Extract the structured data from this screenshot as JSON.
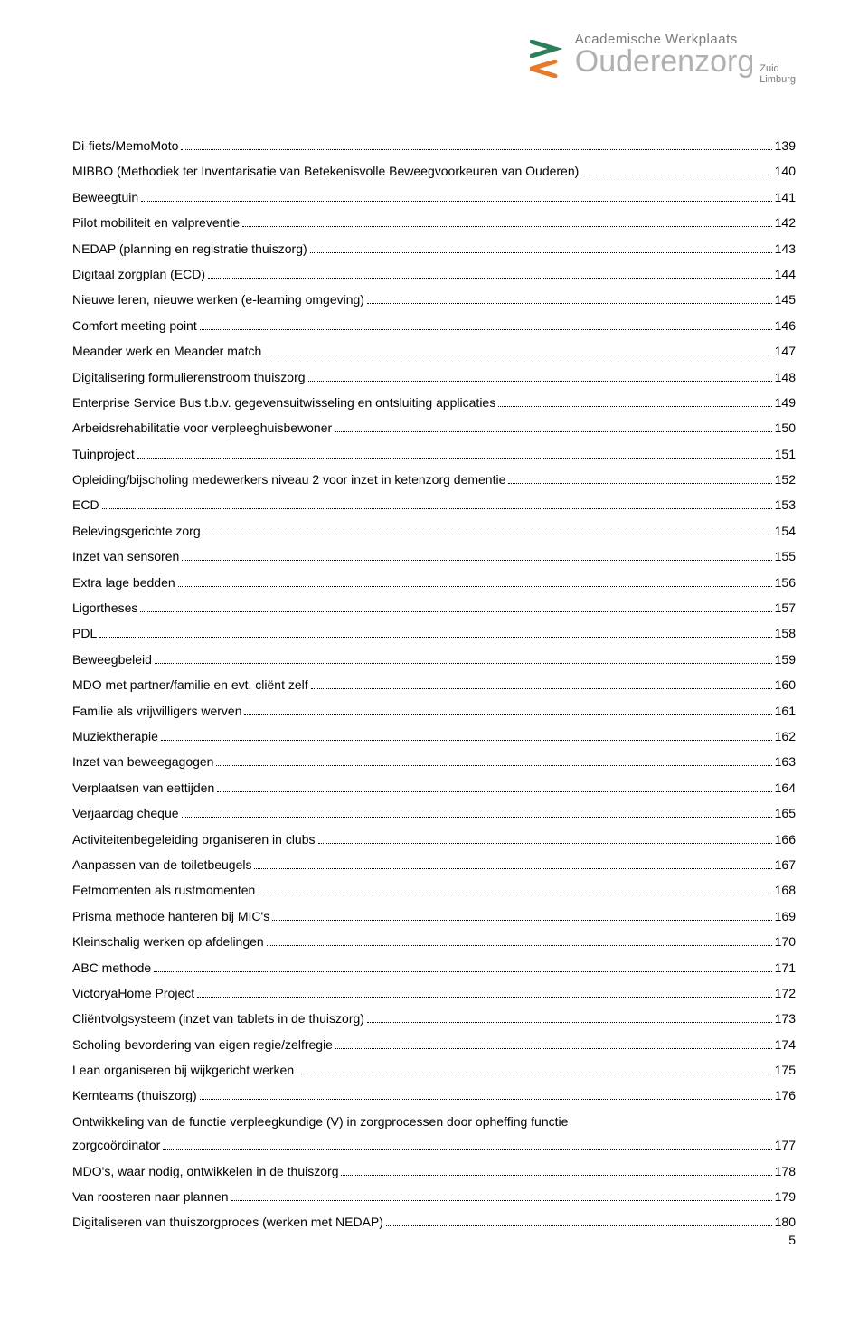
{
  "logo": {
    "line1": "Academische Werkplaats",
    "main": "Ouderenzorg",
    "sub1": "Zuid",
    "sub2": "Limburg",
    "chevron_color_top": "#2e7d5b",
    "chevron_color_bot": "#e67a2e"
  },
  "toc": [
    {
      "title": "Di-fiets/MemoMoto",
      "page": "139"
    },
    {
      "title": "MIBBO (Methodiek ter Inventarisatie van Betekenisvolle Beweegvoorkeuren van Ouderen)",
      "page": "140"
    },
    {
      "title": "Beweegtuin",
      "page": "141"
    },
    {
      "title": "Pilot mobiliteit en valpreventie",
      "page": "142"
    },
    {
      "title": "NEDAP (planning en registratie thuiszorg)",
      "page": "143"
    },
    {
      "title": "Digitaal zorgplan (ECD)",
      "page": "144"
    },
    {
      "title": "Nieuwe leren, nieuwe werken (e-learning omgeving)",
      "page": "145"
    },
    {
      "title": "Comfort meeting point",
      "page": "146"
    },
    {
      "title": "Meander werk en Meander match",
      "page": "147"
    },
    {
      "title": "Digitalisering formulierenstroom thuiszorg",
      "page": "148"
    },
    {
      "title": "Enterprise Service Bus t.b.v. gegevensuitwisseling en ontsluiting applicaties",
      "page": "149"
    },
    {
      "title": "Arbeidsrehabilitatie voor verpleeghuisbewoner",
      "page": "150"
    },
    {
      "title": "Tuinproject",
      "page": "151"
    },
    {
      "title": "Opleiding/bijscholing medewerkers niveau 2 voor inzet in ketenzorg dementie",
      "page": "152"
    },
    {
      "title": "ECD",
      "page": "153"
    },
    {
      "title": "Belevingsgerichte zorg",
      "page": "154"
    },
    {
      "title": "Inzet van sensoren",
      "page": "155"
    },
    {
      "title": "Extra lage bedden",
      "page": "156"
    },
    {
      "title": "Ligortheses",
      "page": "157"
    },
    {
      "title": "PDL",
      "page": "158"
    },
    {
      "title": "Beweegbeleid",
      "page": "159"
    },
    {
      "title": "MDO met partner/familie en evt. cliënt zelf",
      "page": "160"
    },
    {
      "title": "Familie als vrijwilligers werven",
      "page": "161"
    },
    {
      "title": "Muziektherapie",
      "page": "162"
    },
    {
      "title": "Inzet van beweegagogen",
      "page": "163"
    },
    {
      "title": "Verplaatsen van eettijden",
      "page": "164"
    },
    {
      "title": "Verjaardag cheque",
      "page": "165"
    },
    {
      "title": "Activiteitenbegeleiding organiseren in clubs",
      "page": "166"
    },
    {
      "title": "Aanpassen van de toiletbeugels",
      "page": "167"
    },
    {
      "title": "Eetmomenten als rustmomenten",
      "page": "168"
    },
    {
      "title": "Prisma methode hanteren bij MIC's",
      "page": "169"
    },
    {
      "title": "Kleinschalig werken op afdelingen",
      "page": "170"
    },
    {
      "title": "ABC methode",
      "page": "171"
    },
    {
      "title": "VictoryaHome Project",
      "page": "172"
    },
    {
      "title": "Cliëntvolgsysteem (inzet van tablets in de thuiszorg)",
      "page": "173"
    },
    {
      "title": "Scholing bevordering van eigen regie/zelfregie",
      "page": "174"
    },
    {
      "title": "Lean organiseren bij wijkgericht werken",
      "page": "175"
    },
    {
      "title": "Kernteams (thuiszorg)",
      "page": "176"
    },
    {
      "title": "Ontwikkeling van de functie verpleegkundige (V) in zorgprocessen door opheffing functie zorgcoördinator",
      "page": "177",
      "wrap": true,
      "cont": "zorgcoördinator"
    },
    {
      "title": "MDO's, waar nodig, ontwikkelen in de thuiszorg",
      "page": "178"
    },
    {
      "title": "Van roosteren naar plannen",
      "page": "179"
    },
    {
      "title": "Digitaliseren van thuiszorgproces (werken met NEDAP)",
      "page": "180"
    }
  ],
  "page_number": "5"
}
